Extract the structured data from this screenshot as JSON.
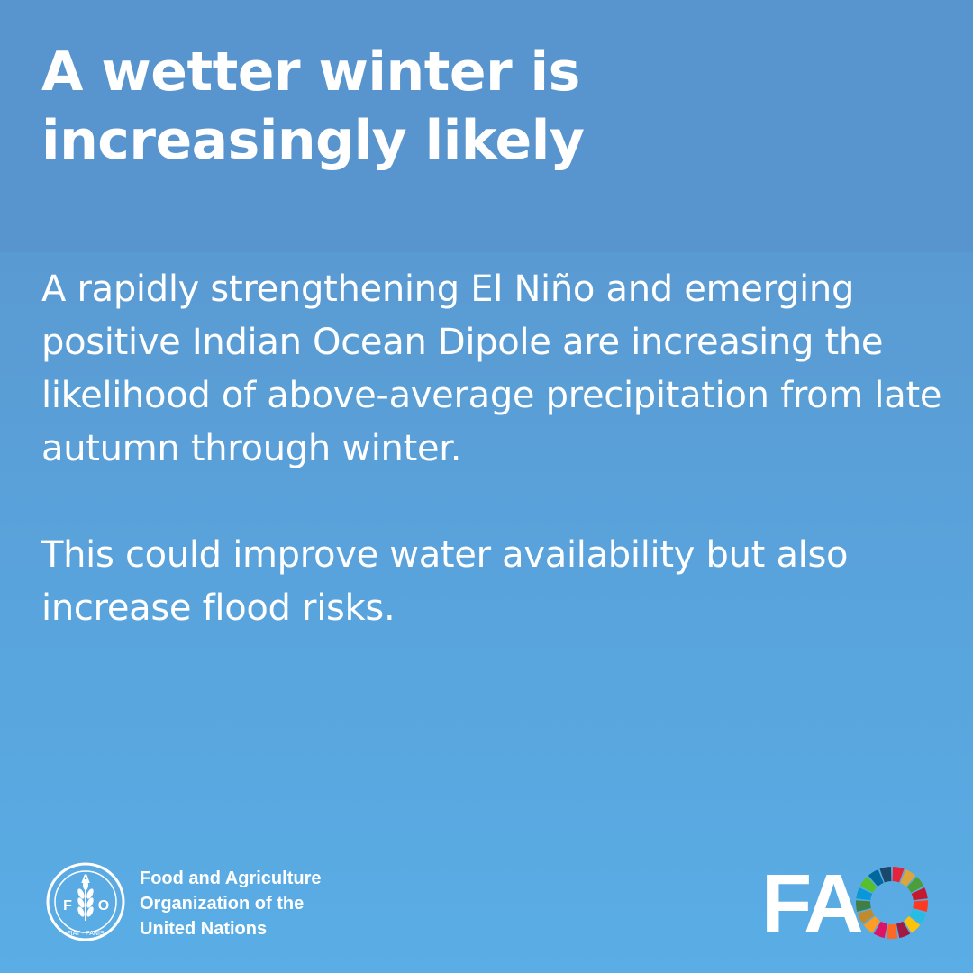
{
  "title": "A wetter winter is increasingly likely",
  "body": {
    "paragraph_1": "A rapidly strengthening El Niño and emerging positive Indian Ocean Dipole are increasing the likelihood of above-average precipitation from late autumn through winter.",
    "paragraph_2": "This could improve water availability but also increase flood risks."
  },
  "footer": {
    "org_name_lines": [
      "Food and Agriculture",
      "Organization of the",
      "United Nations"
    ],
    "emblem_text": {
      "top": "FAO",
      "motto": "FIAT PANIS"
    },
    "logo_text": "FA",
    "emblem_icon": "fao-emblem-icon",
    "wheel_icon": "sdg-color-wheel-icon"
  },
  "colors": {
    "background_top": "#5894cd",
    "background_bottom": "#5aade5",
    "text": "#ffffff"
  }
}
